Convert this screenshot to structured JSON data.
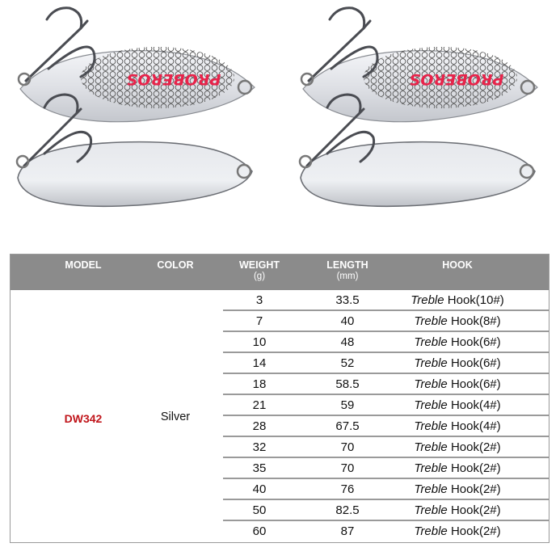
{
  "brand_logo": "PROBEROS",
  "colors": {
    "header_bg": "#8b8b8b",
    "model_text": "#c0141a",
    "logo": "#e8234a"
  },
  "table": {
    "headers": [
      {
        "label": "MODEL",
        "unit": ""
      },
      {
        "label": "COLOR",
        "unit": ""
      },
      {
        "label": "WEIGHT",
        "unit": "(g)"
      },
      {
        "label": "LENGTH",
        "unit": "(mm)"
      },
      {
        "label": "HOOK",
        "unit": ""
      }
    ],
    "model": "DW342",
    "color": "Silver",
    "rows": [
      {
        "weight": "3",
        "length": "33.5",
        "hook_type": "Treble",
        "hook_size": "Hook(10#)"
      },
      {
        "weight": "7",
        "length": "40",
        "hook_type": "Treble",
        "hook_size": "Hook(8#)"
      },
      {
        "weight": "10",
        "length": "48",
        "hook_type": "Treble",
        "hook_size": "Hook(6#)"
      },
      {
        "weight": "14",
        "length": "52",
        "hook_type": "Treble",
        "hook_size": "Hook(6#)"
      },
      {
        "weight": "18",
        "length": "58.5",
        "hook_type": "Treble",
        "hook_size": "Hook(6#)"
      },
      {
        "weight": "21",
        "length": "59",
        "hook_type": "Treble",
        "hook_size": "Hook(4#)"
      },
      {
        "weight": "28",
        "length": "67.5",
        "hook_type": "Treble",
        "hook_size": "Hook(4#)"
      },
      {
        "weight": "32",
        "length": "70",
        "hook_type": "Treble",
        "hook_size": "Hook(2#)"
      },
      {
        "weight": "35",
        "length": "70",
        "hook_type": "Treble",
        "hook_size": "Hook(2#)"
      },
      {
        "weight": "40",
        "length": "76",
        "hook_type": "Treble",
        "hook_size": "Hook(2#)"
      },
      {
        "weight": "50",
        "length": "82.5",
        "hook_type": "Treble",
        "hook_size": "Hook(2#)"
      },
      {
        "weight": "60",
        "length": "87",
        "hook_type": "Treble",
        "hook_size": "Hook(2#)"
      }
    ]
  }
}
